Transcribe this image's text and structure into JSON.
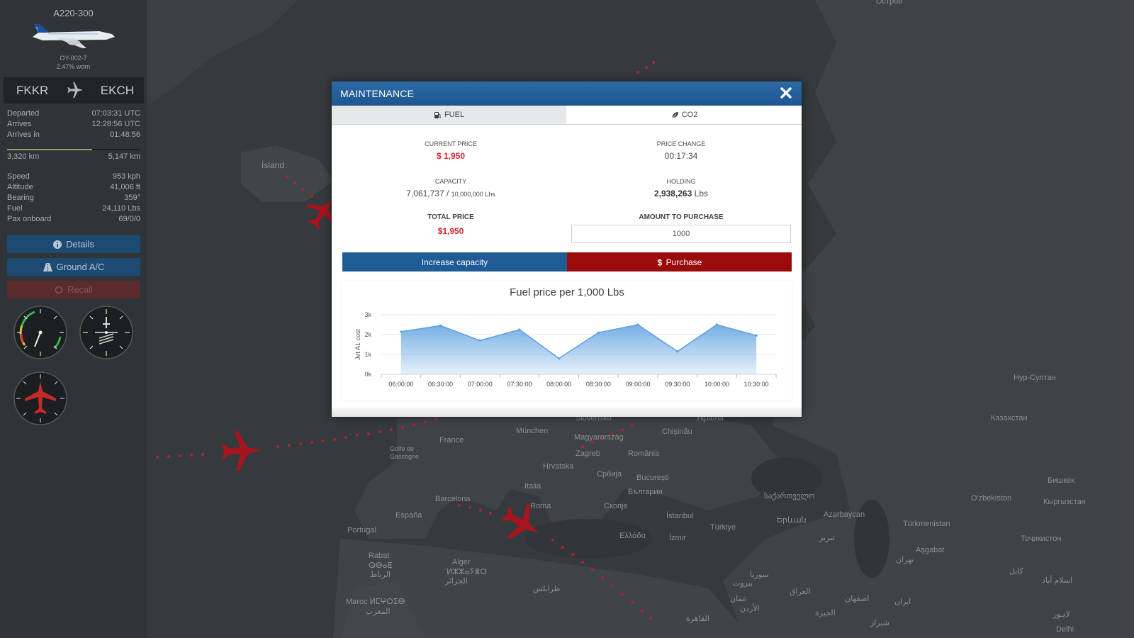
{
  "map": {
    "labels": [
      {
        "name": "Ísland",
        "cls": ""
      },
      {
        "name": "France",
        "cls": ""
      },
      {
        "name": "München",
        "cls": ""
      },
      {
        "name": "Magyarország",
        "cls": ""
      },
      {
        "name": "Chișinău",
        "cls": ""
      },
      {
        "name": "Zagreb",
        "cls": ""
      },
      {
        "name": "România",
        "cls": ""
      },
      {
        "name": "Hrvatska",
        "cls": ""
      },
      {
        "name": "Србија",
        "cls": ""
      },
      {
        "name": "București",
        "cls": ""
      },
      {
        "name": "Italia",
        "cls": ""
      },
      {
        "name": "България",
        "cls": ""
      },
      {
        "name": "Barcelona",
        "cls": ""
      },
      {
        "name": "Roma",
        "cls": ""
      },
      {
        "name": "Скопје",
        "cls": ""
      },
      {
        "name": "España",
        "cls": ""
      },
      {
        "name": "İstanbul",
        "cls": ""
      },
      {
        "name": "Portugal",
        "cls": ""
      },
      {
        "name": "Ελλάδα",
        "cls": ""
      },
      {
        "name": "İzmir",
        "cls": ""
      },
      {
        "name": "Türkiye",
        "cls": ""
      },
      {
        "name": "საქართველო",
        "cls": ""
      },
      {
        "name": "Azərbaycan",
        "cls": ""
      },
      {
        "name": "Երևան",
        "cls": ""
      },
      {
        "name": "تبریز",
        "cls": ""
      },
      {
        "name": "Rabat",
        "cls": ""
      },
      {
        "name": "ⵕⴱⴰⵟ",
        "cls": ""
      },
      {
        "name": "الرباط",
        "cls": ""
      },
      {
        "name": "Alger",
        "cls": ""
      },
      {
        "name": "ⵍⵣⵣⴰⵢⴻⵔ",
        "cls": ""
      },
      {
        "name": "الجزائر",
        "cls": ""
      },
      {
        "name": "طرابلس",
        "cls": ""
      },
      {
        "name": "Maroc ⵍⵎⵖⵔⵉⴱ",
        "cls": ""
      },
      {
        "name": "المغرب",
        "cls": ""
      },
      {
        "name": "سوريا",
        "cls": ""
      },
      {
        "name": "بيروت",
        "cls": ""
      },
      {
        "name": "العراق",
        "cls": ""
      },
      {
        "name": "عمان",
        "cls": ""
      },
      {
        "name": "الأردن",
        "cls": ""
      },
      {
        "name": "القاهرة",
        "cls": ""
      },
      {
        "name": "اصفهان",
        "cls": ""
      },
      {
        "name": "تهران",
        "cls": ""
      },
      {
        "name": "ایران",
        "cls": ""
      },
      {
        "name": "شیراز",
        "cls": ""
      },
      {
        "name": "الجيزة",
        "cls": ""
      },
      {
        "name": "Нур-Султан",
        "cls": ""
      },
      {
        "name": "Казахстан",
        "cls": ""
      },
      {
        "name": "Бишкек",
        "cls": ""
      },
      {
        "name": "O'zbekiston",
        "cls": ""
      },
      {
        "name": "Кыргызстан",
        "cls": ""
      },
      {
        "name": "Türkmenistan",
        "cls": ""
      },
      {
        "name": "Тоҷикистон",
        "cls": ""
      },
      {
        "name": "Aşgabat",
        "cls": ""
      },
      {
        "name": "کابل",
        "cls": ""
      },
      {
        "name": "اسلام آباد",
        "cls": ""
      },
      {
        "name": "لاہور",
        "cls": ""
      },
      {
        "name": "Delhi",
        "cls": ""
      },
      {
        "name": "Остров",
        "cls": ""
      },
      {
        "name": "Golfe de Gascogne",
        "cls": ""
      },
      {
        "name": "Slovensko",
        "cls": ""
      },
      {
        "name": "Україна",
        "cls": ""
      }
    ]
  },
  "sidebar": {
    "model": "A220-300",
    "registration": "OY-002-7",
    "wear": "2.47% worn",
    "route_from": "FKKR",
    "route_to": "EKCH",
    "times": [
      {
        "label": "Departed",
        "value": "07:03:31 UTC"
      },
      {
        "label": "Arrives",
        "value": "12:28:56 UTC"
      },
      {
        "label": "Arrives in",
        "value": "01:48:56"
      }
    ],
    "distance_flown": "3,320 km",
    "distance_total": "5,147 km",
    "progress_fraction": 0.64,
    "stats": [
      {
        "label": "Speed",
        "value": "953 kph"
      },
      {
        "label": "Altitude",
        "value": "41,006 ft"
      },
      {
        "label": "Bearing",
        "value": "359°"
      },
      {
        "label": "Fuel",
        "value": "24,110 Lbs"
      },
      {
        "label": "Pax onboard",
        "value": "69/0/0"
      }
    ],
    "buttons": {
      "details": "Details",
      "ground": "Ground A/C",
      "recall": "Recall"
    }
  },
  "modal": {
    "title": "MAINTENANCE",
    "tabs": {
      "fuel": "FUEL",
      "co2": "CO2"
    },
    "current_price_label": "CURRENT PRICE",
    "current_price": "$ 1,950",
    "price_change_label": "PRICE CHANGE",
    "price_change": "00:17:34",
    "capacity_label": "CAPACITY",
    "capacity_value": "7,061,737",
    "capacity_sep": " / ",
    "capacity_max": "10,000,000 Lbs",
    "holding_label": "HOLDING",
    "holding_value": "2,938,263",
    "holding_unit": " Lbs",
    "total_price_label": "TOTAL PRICE",
    "total_price": "$1,950",
    "amount_label": "AMOUNT TO PURCHASE",
    "amount_value": "1000",
    "btn_capacity": "Increase capacity",
    "btn_purchase": "Purchase",
    "colors": {
      "header": "#1f5b95",
      "purchase": "#9b0b0b",
      "price": "#d0262e"
    }
  },
  "chart_data": {
    "type": "area",
    "title": "Fuel price per 1,000 Lbs",
    "xlabel": "",
    "ylabel": "Jet A1 cost",
    "x": [
      "06:00:00",
      "06:30:00",
      "07:00:00",
      "07:30:00",
      "08:00:00",
      "08:30:00",
      "09:00:00",
      "09:30:00",
      "10:00:00",
      "10:30:00"
    ],
    "series": [
      {
        "name": "",
        "values": [
          2150,
          2450,
          1700,
          2250,
          800,
          2100,
          2500,
          1150,
          2500,
          1950
        ]
      }
    ],
    "ylim": [
      0,
      3000
    ],
    "yticks": [
      "0k",
      "1k",
      "2k",
      "3k"
    ],
    "grid": true,
    "color": "#5ea0e0"
  }
}
